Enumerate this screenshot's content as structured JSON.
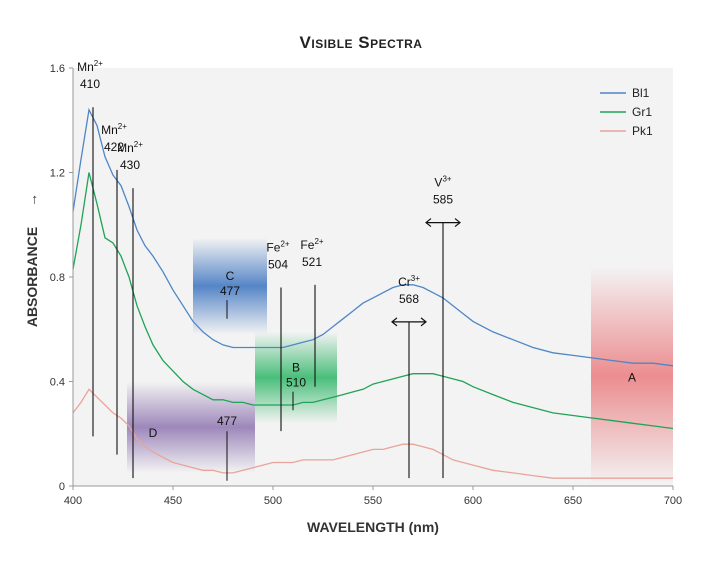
{
  "chart_data": {
    "type": "line",
    "title": "Visible Spectra",
    "xlabel": "WAVELENGTH (nm)",
    "ylabel": "ABSORBANCE",
    "xlim": [
      400,
      700
    ],
    "ylim": [
      0,
      1.6
    ],
    "xticks": [
      400,
      450,
      500,
      550,
      600,
      650,
      700
    ],
    "yticks": [
      0,
      0.4,
      0.8,
      1.2,
      1.6
    ],
    "ytick_labels": [
      "0",
      "0.4",
      "0.8",
      "1.2",
      "1.6"
    ],
    "grid": false,
    "legend_position": "top-right",
    "series": [
      {
        "name": "Bl1",
        "color": "#4f86c6",
        "x": [
          400,
          404,
          408,
          412,
          416,
          420,
          424,
          428,
          432,
          436,
          440,
          445,
          450,
          455,
          460,
          465,
          470,
          475,
          480,
          485,
          490,
          495,
          500,
          505,
          510,
          515,
          520,
          525,
          530,
          535,
          540,
          545,
          550,
          555,
          560,
          565,
          570,
          575,
          580,
          585,
          590,
          595,
          600,
          610,
          620,
          630,
          640,
          650,
          660,
          670,
          680,
          690,
          700
        ],
        "y": [
          1.05,
          1.25,
          1.44,
          1.38,
          1.26,
          1.19,
          1.15,
          1.07,
          0.98,
          0.92,
          0.88,
          0.82,
          0.75,
          0.69,
          0.63,
          0.59,
          0.56,
          0.54,
          0.53,
          0.53,
          0.53,
          0.53,
          0.53,
          0.53,
          0.54,
          0.55,
          0.56,
          0.58,
          0.61,
          0.64,
          0.67,
          0.7,
          0.72,
          0.74,
          0.76,
          0.77,
          0.77,
          0.76,
          0.74,
          0.72,
          0.69,
          0.66,
          0.63,
          0.59,
          0.56,
          0.53,
          0.51,
          0.5,
          0.49,
          0.48,
          0.47,
          0.47,
          0.46
        ]
      },
      {
        "name": "Gr1",
        "color": "#1fa357",
        "x": [
          400,
          404,
          408,
          412,
          416,
          420,
          424,
          428,
          432,
          436,
          440,
          445,
          450,
          455,
          460,
          465,
          470,
          475,
          480,
          485,
          490,
          495,
          500,
          505,
          510,
          515,
          520,
          525,
          530,
          535,
          540,
          545,
          550,
          555,
          560,
          565,
          570,
          575,
          580,
          585,
          590,
          595,
          600,
          610,
          620,
          630,
          640,
          650,
          660,
          670,
          680,
          690,
          700
        ],
        "y": [
          0.83,
          1.0,
          1.2,
          1.08,
          0.95,
          0.93,
          0.88,
          0.8,
          0.69,
          0.61,
          0.54,
          0.48,
          0.44,
          0.4,
          0.37,
          0.35,
          0.33,
          0.33,
          0.32,
          0.32,
          0.31,
          0.31,
          0.31,
          0.31,
          0.31,
          0.32,
          0.32,
          0.33,
          0.34,
          0.35,
          0.36,
          0.37,
          0.39,
          0.4,
          0.41,
          0.42,
          0.43,
          0.43,
          0.43,
          0.42,
          0.41,
          0.4,
          0.38,
          0.35,
          0.32,
          0.3,
          0.28,
          0.27,
          0.26,
          0.25,
          0.24,
          0.23,
          0.22
        ]
      },
      {
        "name": "Pk1",
        "color": "#e8a49a",
        "x": [
          400,
          404,
          408,
          412,
          416,
          420,
          424,
          428,
          432,
          436,
          440,
          445,
          450,
          455,
          460,
          465,
          470,
          475,
          480,
          485,
          490,
          495,
          500,
          505,
          510,
          515,
          520,
          525,
          530,
          535,
          540,
          545,
          550,
          555,
          560,
          565,
          570,
          575,
          580,
          585,
          590,
          595,
          600,
          610,
          620,
          630,
          640,
          650,
          660,
          670,
          680,
          690,
          700
        ],
        "y": [
          0.28,
          0.32,
          0.37,
          0.34,
          0.31,
          0.28,
          0.26,
          0.23,
          0.18,
          0.15,
          0.13,
          0.11,
          0.09,
          0.08,
          0.07,
          0.06,
          0.06,
          0.05,
          0.05,
          0.06,
          0.07,
          0.08,
          0.09,
          0.09,
          0.09,
          0.1,
          0.1,
          0.1,
          0.1,
          0.11,
          0.12,
          0.13,
          0.14,
          0.14,
          0.15,
          0.16,
          0.16,
          0.15,
          0.14,
          0.12,
          0.1,
          0.09,
          0.08,
          0.06,
          0.05,
          0.04,
          0.03,
          0.03,
          0.03,
          0.03,
          0.03,
          0.03,
          0.03
        ]
      }
    ],
    "bands": [
      {
        "label": "A",
        "x0": 659,
        "x1": 700,
        "y0": 0,
        "y1": 0.84,
        "color": "#e96b6f"
      },
      {
        "label": "B",
        "value": "510",
        "x0": 491,
        "x1": 532,
        "y0": 0.24,
        "y1": 0.59,
        "color": "#2cb565"
      },
      {
        "label": "C",
        "value": "477",
        "x0": 460,
        "x1": 497,
        "y0": 0.58,
        "y1": 0.95,
        "color": "#3a72bf"
      },
      {
        "label": "D",
        "value": "477",
        "x0": 427,
        "x1": 491,
        "y0": 0.05,
        "y1": 0.4,
        "color": "#6f4e9c"
      }
    ],
    "annotations": [
      {
        "ion": "Mn",
        "charge": "2+",
        "value": "410",
        "x": 410,
        "y_top": 1.45,
        "y_bottom": 0.19
      },
      {
        "ion": "Mn",
        "charge": "2+",
        "value": "422",
        "x": 422,
        "y_top": 1.21,
        "y_bottom": 0.12
      },
      {
        "ion": "Mn",
        "charge": "2+",
        "value": "430",
        "x": 430,
        "y_top": 1.14,
        "y_bottom": 0.03
      },
      {
        "ion": "Fe",
        "charge": "2+",
        "value": "504",
        "x": 504,
        "y_top": 0.76,
        "y_bottom": 0.21
      },
      {
        "ion": "Fe",
        "charge": "2+",
        "value": "521",
        "x": 521,
        "y_top": 0.77,
        "y_bottom": 0.38
      },
      {
        "ion": "Cr",
        "charge": "3+",
        "value": "568",
        "x": 568,
        "y_top": 0.59,
        "y_bottom": 0.03
      },
      {
        "ion": "V",
        "charge": "3+",
        "value": "585",
        "x": 585,
        "y_top": 0.97,
        "y_bottom": 0.03
      }
    ]
  }
}
